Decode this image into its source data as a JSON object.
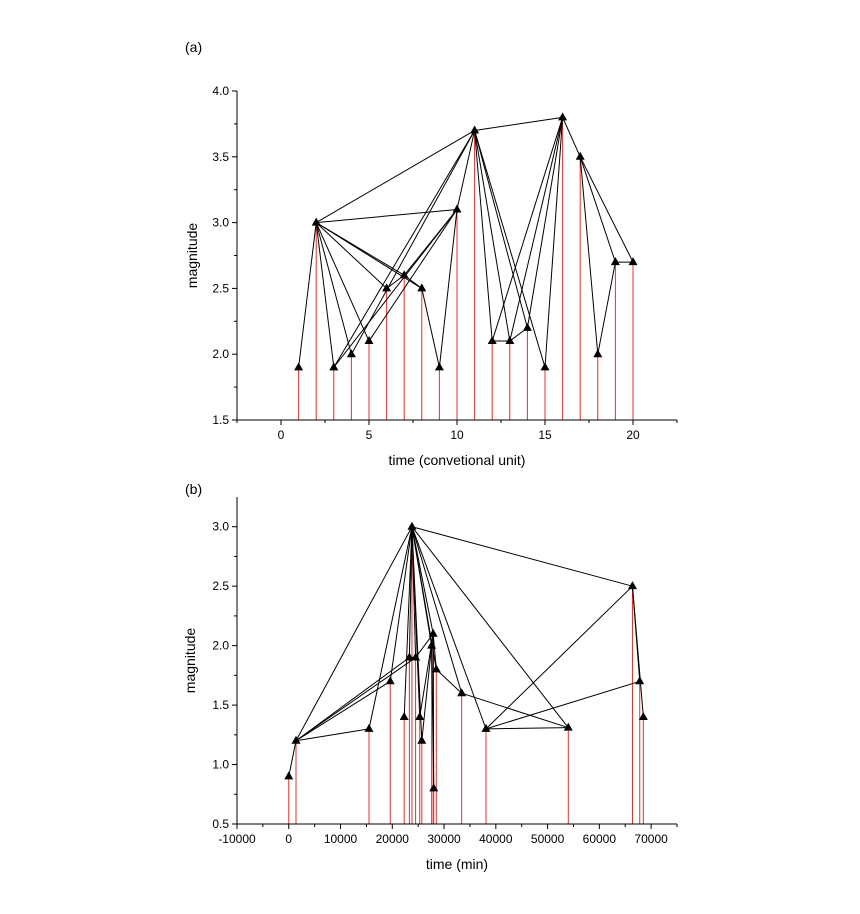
{
  "chart_data": [
    {
      "type": "scatter",
      "panel_label": "(a)",
      "title": "",
      "xlabel": "time (convetional unit)",
      "ylabel": "magnitude",
      "xlim": [
        -2.5,
        22.5
      ],
      "ylim": [
        1.5,
        4.0
      ],
      "xticks": [
        0,
        5,
        10,
        15,
        20
      ],
      "xtick_labels": [
        "0",
        "5",
        "10",
        "15",
        "20"
      ],
      "yticks": [
        1.5,
        2.0,
        2.5,
        3.0,
        3.5,
        4.0
      ],
      "ytick_labels": [
        "1.5",
        "2.0",
        "2.5",
        "3.0",
        "3.5",
        "4.0"
      ],
      "stem_color": "#e8302a",
      "marker_color": "#000000",
      "points": [
        {
          "x": 1,
          "y": 1.9
        },
        {
          "x": 2,
          "y": 3.0
        },
        {
          "x": 3,
          "y": 1.9
        },
        {
          "x": 4,
          "y": 2.0
        },
        {
          "x": 5,
          "y": 2.1
        },
        {
          "x": 6,
          "y": 2.5
        },
        {
          "x": 7,
          "y": 2.6
        },
        {
          "x": 8,
          "y": 2.5
        },
        {
          "x": 9,
          "y": 1.9
        },
        {
          "x": 10,
          "y": 3.1
        },
        {
          "x": 11,
          "y": 3.7
        },
        {
          "x": 12,
          "y": 2.1
        },
        {
          "x": 13,
          "y": 2.1
        },
        {
          "x": 14,
          "y": 2.2
        },
        {
          "x": 15,
          "y": 1.9
        },
        {
          "x": 16,
          "y": 3.8
        },
        {
          "x": 17,
          "y": 3.5
        },
        {
          "x": 18,
          "y": 2.0
        },
        {
          "x": 19,
          "y": 2.7
        },
        {
          "x": 20,
          "y": 2.7
        }
      ],
      "edges": [
        [
          1,
          2
        ],
        [
          2,
          3
        ],
        [
          2,
          4
        ],
        [
          2,
          5
        ],
        [
          2,
          6
        ],
        [
          2,
          7
        ],
        [
          2,
          8
        ],
        [
          2,
          10
        ],
        [
          2,
          11
        ],
        [
          3,
          10
        ],
        [
          3,
          11
        ],
        [
          4,
          11
        ],
        [
          5,
          10
        ],
        [
          6,
          7
        ],
        [
          7,
          8
        ],
        [
          7,
          10
        ],
        [
          8,
          9
        ],
        [
          9,
          10
        ],
        [
          10,
          11
        ],
        [
          11,
          12
        ],
        [
          11,
          13
        ],
        [
          11,
          14
        ],
        [
          11,
          15
        ],
        [
          11,
          16
        ],
        [
          12,
          13
        ],
        [
          12,
          16
        ],
        [
          13,
          14
        ],
        [
          13,
          16
        ],
        [
          14,
          16
        ],
        [
          15,
          16
        ],
        [
          16,
          17
        ],
        [
          17,
          18
        ],
        [
          17,
          19
        ],
        [
          17,
          20
        ],
        [
          18,
          19
        ],
        [
          19,
          20
        ]
      ]
    },
    {
      "type": "scatter",
      "panel_label": "(b)",
      "title": "",
      "xlabel": "time (min)",
      "ylabel": "magnitude",
      "xlim": [
        -10000,
        75000
      ],
      "ylim": [
        0.5,
        3.25
      ],
      "xticks": [
        -10000,
        0,
        10000,
        20000,
        30000,
        40000,
        50000,
        60000,
        70000
      ],
      "xtick_labels": [
        "-10000",
        "0",
        "10000",
        "20000",
        "30000",
        "40000",
        "50000",
        "60000",
        "70000"
      ],
      "yticks": [
        0.5,
        1.0,
        1.5,
        2.0,
        2.5,
        3.0
      ],
      "ytick_labels": [
        "0.5",
        "1.0",
        "1.5",
        "2.0",
        "2.5",
        "3.0"
      ],
      "stem_color": "#e8302a",
      "marker_color": "#000000",
      "points": [
        {
          "x": 0,
          "y": 0.9
        },
        {
          "x": 1400,
          "y": 1.2
        },
        {
          "x": 15500,
          "y": 1.3
        },
        {
          "x": 19600,
          "y": 1.7
        },
        {
          "x": 22300,
          "y": 1.4
        },
        {
          "x": 23300,
          "y": 1.9
        },
        {
          "x": 23800,
          "y": 3.0
        },
        {
          "x": 24500,
          "y": 1.9
        },
        {
          "x": 25300,
          "y": 1.4
        },
        {
          "x": 25700,
          "y": 1.2
        },
        {
          "x": 27600,
          "y": 2.0
        },
        {
          "x": 27900,
          "y": 2.1
        },
        {
          "x": 28000,
          "y": 0.8
        },
        {
          "x": 28500,
          "y": 1.8
        },
        {
          "x": 33400,
          "y": 1.6
        },
        {
          "x": 38100,
          "y": 1.3
        },
        {
          "x": 54000,
          "y": 1.31
        },
        {
          "x": 66400,
          "y": 2.5
        },
        {
          "x": 67800,
          "y": 1.7
        },
        {
          "x": 68500,
          "y": 1.4
        }
      ],
      "edges": [
        [
          1,
          2
        ],
        [
          2,
          3
        ],
        [
          2,
          4
        ],
        [
          2,
          6
        ],
        [
          2,
          7
        ],
        [
          2,
          8
        ],
        [
          3,
          7
        ],
        [
          4,
          7
        ],
        [
          5,
          7
        ],
        [
          6,
          7
        ],
        [
          6,
          8
        ],
        [
          7,
          8
        ],
        [
          7,
          9
        ],
        [
          7,
          10
        ],
        [
          7,
          11
        ],
        [
          7,
          12
        ],
        [
          7,
          14
        ],
        [
          7,
          15
        ],
        [
          7,
          16
        ],
        [
          7,
          17
        ],
        [
          7,
          18
        ],
        [
          8,
          12
        ],
        [
          9,
          12
        ],
        [
          10,
          11
        ],
        [
          11,
          12
        ],
        [
          11,
          13
        ],
        [
          12,
          13
        ],
        [
          12,
          14
        ],
        [
          14,
          15
        ],
        [
          15,
          17
        ],
        [
          16,
          17
        ],
        [
          16,
          18
        ],
        [
          16,
          19
        ],
        [
          18,
          19
        ],
        [
          18,
          20
        ]
      ]
    }
  ]
}
